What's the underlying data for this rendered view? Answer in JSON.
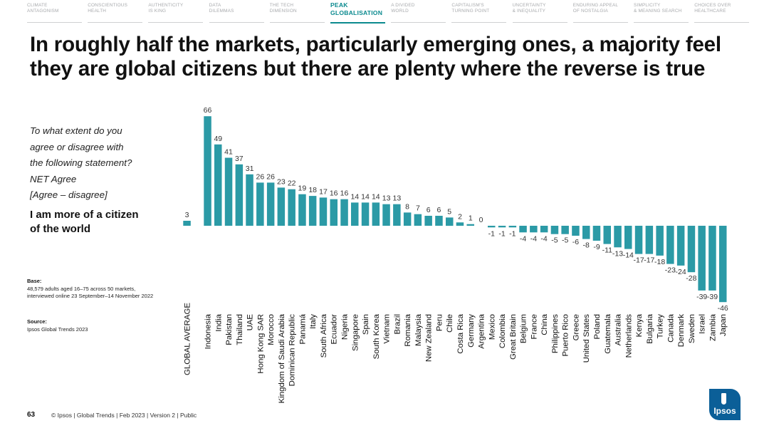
{
  "nav": [
    {
      "line1": "CLIMATE",
      "line2": "ANTAGONISM",
      "active": false
    },
    {
      "line1": "CONSCIENTIOUS",
      "line2": "HEALTH",
      "active": false
    },
    {
      "line1": "AUTHENTICITY",
      "line2": "IS KING",
      "active": false
    },
    {
      "line1": "DATA",
      "line2": "DILEMMAS",
      "active": false
    },
    {
      "line1": "THE TECH",
      "line2": "DIMENSION",
      "active": false
    },
    {
      "line1": "PEAK",
      "line2": "GLOBALISATION",
      "active": true
    },
    {
      "line1": "A DIVIDED",
      "line2": "WORLD",
      "active": false
    },
    {
      "line1": "CAPITALISM'S",
      "line2": "TURNING POINT",
      "active": false
    },
    {
      "line1": "UNCERTAINTY",
      "line2": "& INEQUALITY",
      "active": false
    },
    {
      "line1": "ENDURING APPEAL",
      "line2": "OF NOSTALGIA",
      "active": false
    },
    {
      "line1": "SIMPLICITY",
      "line2": "& MEANING SEARCH",
      "active": false
    },
    {
      "line1": "CHOICES OVER",
      "line2": "HEALTHCARE",
      "active": false
    }
  ],
  "headline": "In roughly half the markets, particularly emerging ones, a majority feel they are global citizens but there are plenty where the reverse is true",
  "question": {
    "lines": [
      "To what extent do you",
      "agree or disagree with",
      "the following statement?",
      "NET Agree",
      "[Agree – disagree]"
    ],
    "statement_lines": [
      "I am more of a citizen",
      "of the world"
    ]
  },
  "base": {
    "title": "Base:",
    "text": "48,579 adults aged 16–75 across 50 markets, interviewed online 23 September–14 November 2022"
  },
  "source": {
    "title": "Source:",
    "text": "Ipsos Global Trends 2023"
  },
  "footer": {
    "page_number": "63",
    "text": "© Ipsos | Global Trends | Feb 2023 | Version 2 | Public"
  },
  "logo": {
    "text": "Ipsos"
  },
  "colors": {
    "bar": "#2b9aa6",
    "accent": "#0b8a8f",
    "logo": "#0b5f98"
  },
  "chart_data": {
    "type": "bar",
    "title": "",
    "xlabel": "",
    "ylabel": "",
    "categories": [
      "GLOBAL AVERAGE",
      "Indonesia",
      "India",
      "Pakistan",
      "Thailand",
      "UAE",
      "Hong Kong SAR",
      "Morocco",
      "Kingdom of Saudi Arabia",
      "Dominican Republic",
      "Panamá",
      "Italy",
      "South Africa",
      "Ecuador",
      "Nigeria",
      "Singapore",
      "Spain",
      "South Korea",
      "Vietnam",
      "Brazil",
      "Romania",
      "Malaysia",
      "New Zealand",
      "Peru",
      "Chile",
      "Costa Rica",
      "Germany",
      "Argentina",
      "Mexico",
      "Colombia",
      "Great Britain",
      "Belgium",
      "France",
      "China",
      "Philippines",
      "Puerto Rico",
      "Greece",
      "United States",
      "Poland",
      "Guatemala",
      "Australia",
      "Netherlands",
      "Kenya",
      "Bulgaria",
      "Turkey",
      "Canada",
      "Denmark",
      "Sweden",
      "Israel",
      "Zambia",
      "Japan"
    ],
    "values": [
      3,
      66,
      49,
      41,
      37,
      31,
      26,
      26,
      23,
      22,
      19,
      18,
      17,
      16,
      16,
      14,
      14,
      14,
      13,
      13,
      8,
      7,
      6,
      6,
      5,
      2,
      1,
      0,
      -1,
      -1,
      -1,
      -4,
      -4,
      -4,
      -5,
      -5,
      -6,
      -8,
      -9,
      -11,
      -13,
      -14,
      -17,
      -17,
      -18,
      -23,
      -24,
      -28,
      -39,
      -39,
      -46
    ],
    "ylim": [
      -46,
      66
    ],
    "grid": false,
    "legend": "none"
  }
}
